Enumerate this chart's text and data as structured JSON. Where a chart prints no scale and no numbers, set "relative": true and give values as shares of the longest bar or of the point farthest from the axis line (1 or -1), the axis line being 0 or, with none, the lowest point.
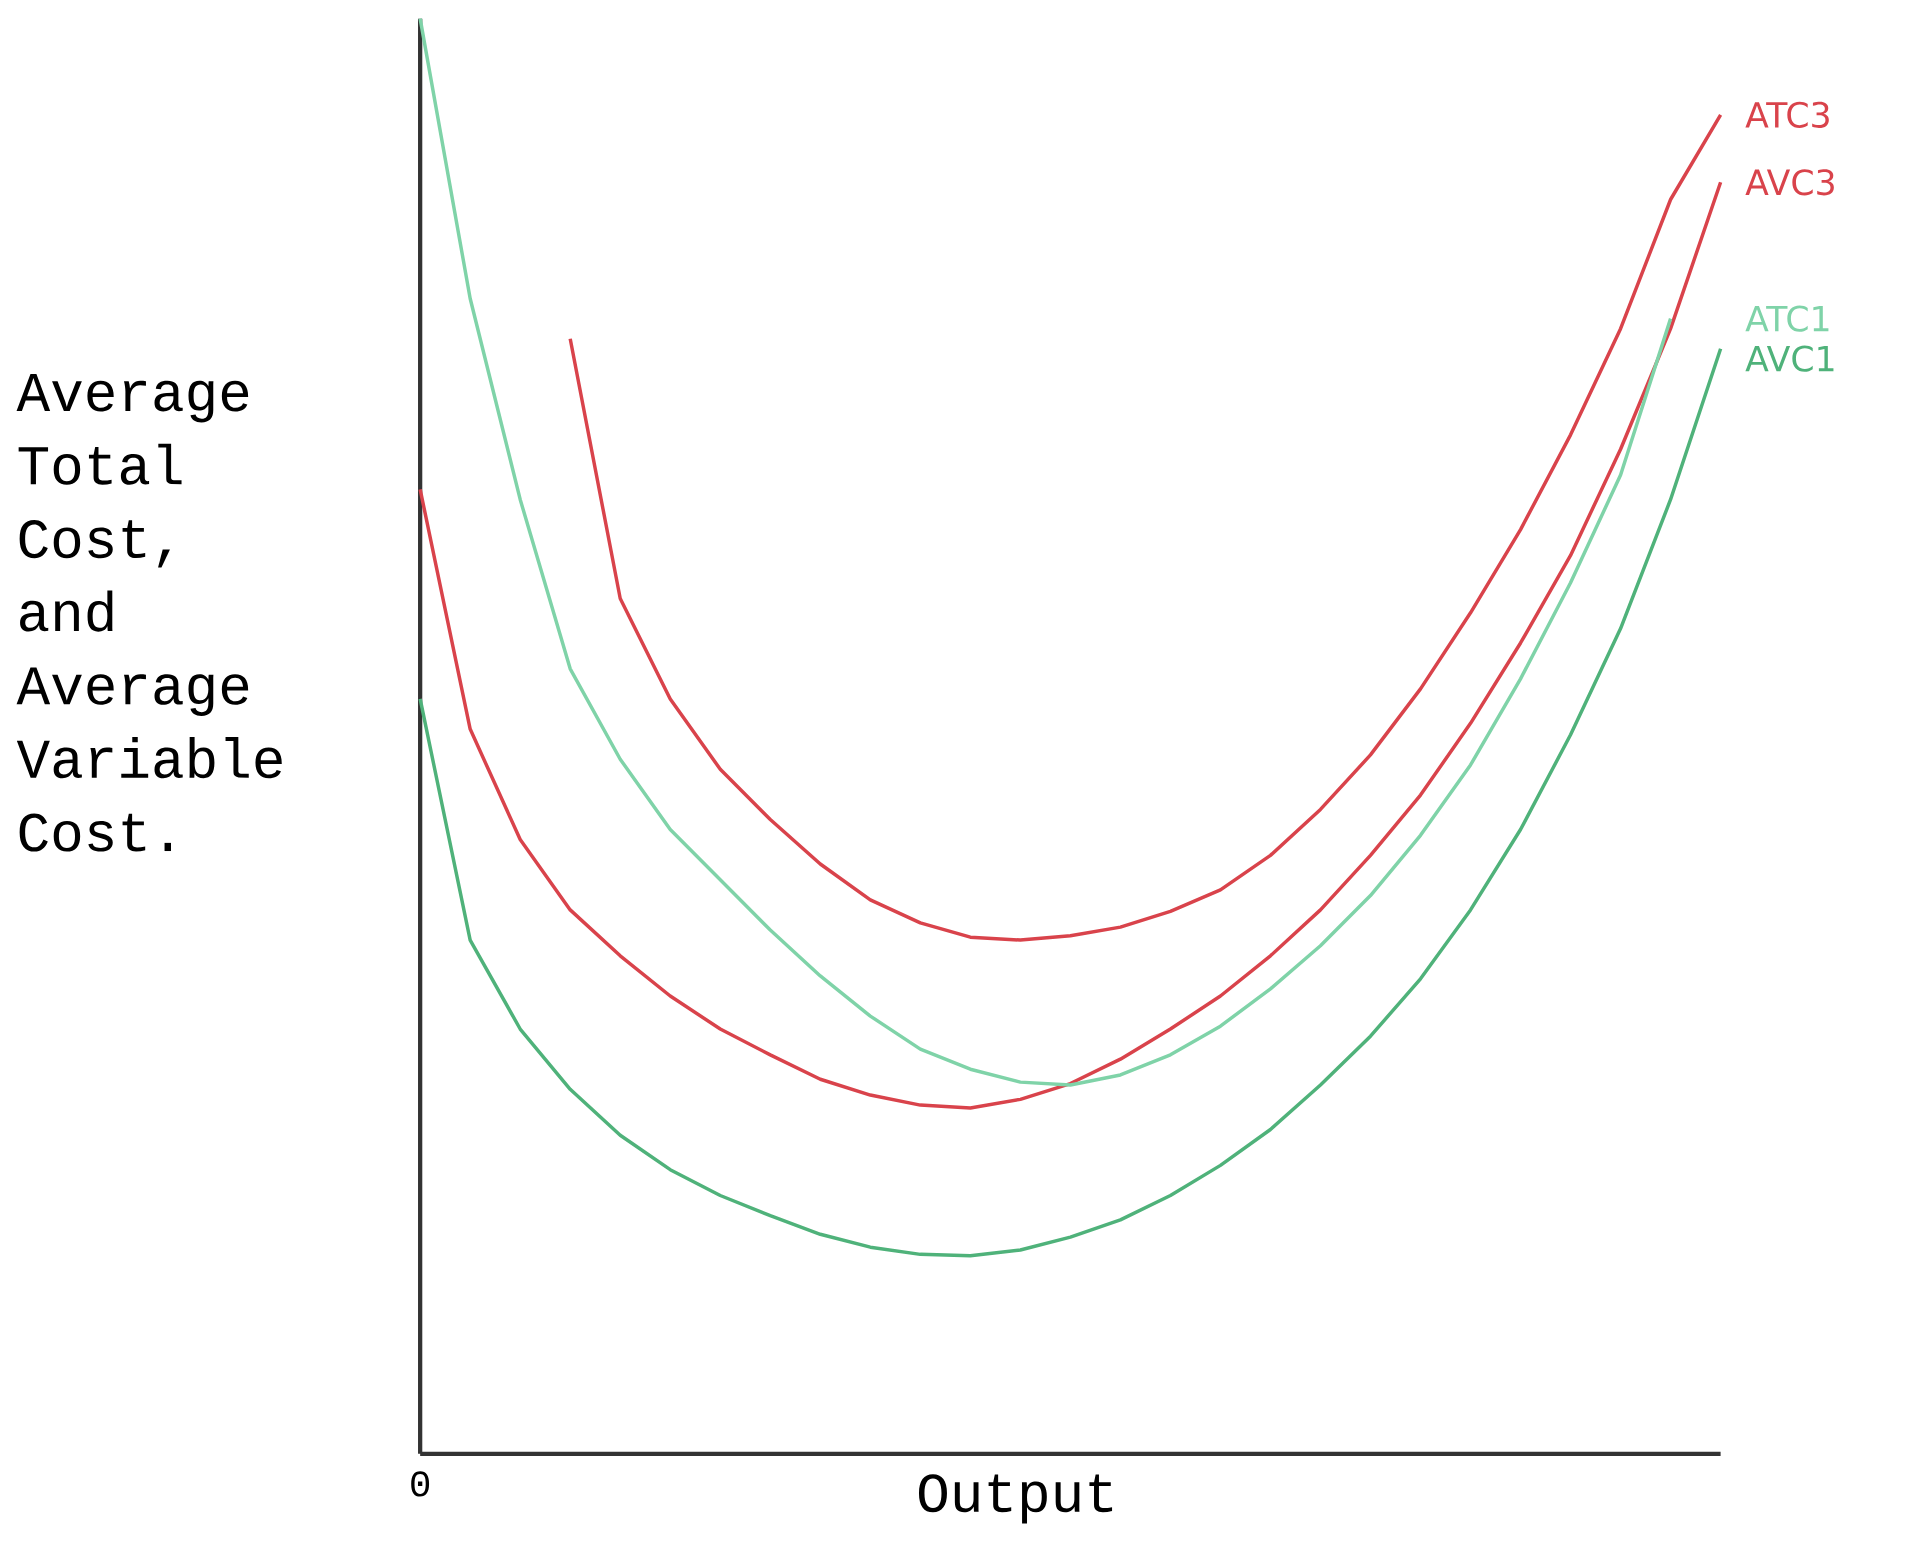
{
  "chart_data": {
    "type": "line",
    "relative": true,
    "xlabel": "Output",
    "ylabel": "Average Total Cost, and Average Variable Cost.",
    "annotations": [
      "0"
    ],
    "marker": "none",
    "line_style": "solid",
    "categories": [
      null,
      null,
      null,
      null,
      null,
      null,
      null,
      null,
      null,
      null,
      null,
      null,
      null,
      null,
      null,
      null,
      null,
      null,
      null,
      null,
      null,
      null,
      null,
      null,
      null,
      null,
      null
    ],
    "series": [
      {
        "name": "ATC3",
        "color": "#d9434b",
        "values": [
          null,
          null,
          null,
          0.777,
          0.596,
          0.526,
          0.477,
          0.442,
          0.411,
          0.386,
          0.37,
          0.36,
          0.358,
          0.361,
          0.367,
          0.378,
          0.393,
          0.417,
          0.449,
          0.487,
          0.533,
          0.586,
          0.644,
          0.71,
          0.784,
          0.874,
          0.933
        ]
      },
      {
        "name": "AVC3",
        "color": "#d9434b",
        "values": [
          0.672,
          0.505,
          0.428,
          0.379,
          0.347,
          0.319,
          0.296,
          0.278,
          0.261,
          0.25,
          0.243,
          0.241,
          0.247,
          0.258,
          0.275,
          0.296,
          0.319,
          0.347,
          0.379,
          0.417,
          0.459,
          0.509,
          0.565,
          0.626,
          0.7,
          0.784,
          0.886
        ]
      },
      {
        "name": "ATC1",
        "color": "#7fd3a8",
        "values": [
          1,
          0.805,
          0.665,
          0.547,
          0.484,
          0.435,
          0.4,
          0.365,
          0.333,
          0.305,
          0.282,
          0.268,
          0.259,
          0.257,
          0.264,
          0.278,
          0.298,
          0.324,
          0.354,
          0.389,
          0.431,
          0.48,
          0.54,
          0.607,
          0.682,
          0.791,
          null
        ]
      },
      {
        "name": "AVC1",
        "color": "#4fb27a",
        "values": [
          0.526,
          0.358,
          0.296,
          0.254,
          0.222,
          0.198,
          0.18,
          0.166,
          0.153,
          0.144,
          0.139,
          0.138,
          0.142,
          0.151,
          0.163,
          0.18,
          0.201,
          0.226,
          0.257,
          0.291,
          0.331,
          0.379,
          0.435,
          0.501,
          0.575,
          0.665,
          0.77
        ]
      }
    ]
  }
}
